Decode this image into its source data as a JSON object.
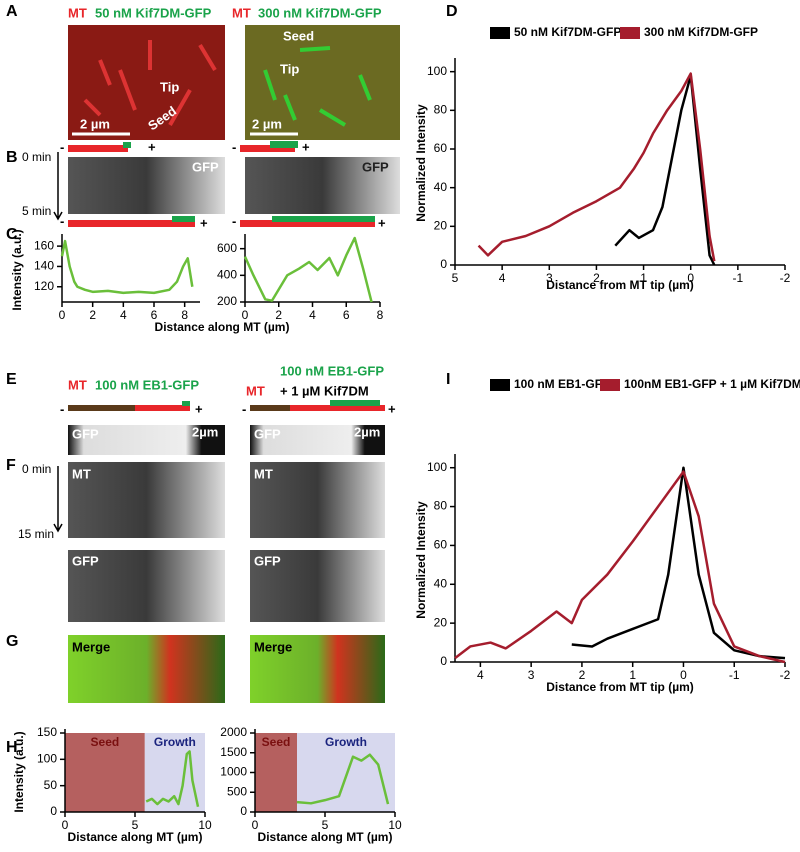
{
  "panels": {
    "letters": [
      "A",
      "B",
      "C",
      "D",
      "E",
      "F",
      "G",
      "H",
      "I"
    ],
    "a": {
      "left_mt": "MT",
      "left_label": "50 nM Kif7DM-GFP",
      "right_mt": "MT",
      "right_label": "300 nM Kif7DM-GFP",
      "left_tip": "Tip",
      "left_seed": "Seed",
      "right_tip": "Tip",
      "right_seed": "Seed",
      "left_scale": "2 µm",
      "right_scale": "2 µm"
    },
    "b": {
      "start": "0 min",
      "end": "5 min",
      "gfp": [
        "GFP",
        "GFP"
      ],
      "minus": [
        "-",
        "-",
        "-",
        "-"
      ],
      "plus": [
        "+",
        "+",
        "+",
        "+"
      ]
    },
    "e": {
      "left_mt": "MT",
      "left_label": "100 nM EB1-GFP",
      "right_mt": "MT",
      "right_label_1": "100 nM EB1-GFP",
      "right_label_2": "+ 1 µM Kif7DM",
      "minus": [
        "-",
        "-"
      ],
      "plus": [
        "+",
        "+"
      ]
    },
    "f": {
      "gfp_strip": [
        "GFP",
        "GFP"
      ],
      "scale": [
        "2µm",
        "2µm"
      ],
      "start": "0 min",
      "end": "15 min",
      "mt": [
        "MT",
        "MT"
      ],
      "gfp": [
        "GFP",
        "GFP"
      ]
    },
    "g": {
      "merge": [
        "Merge",
        "Merge"
      ]
    }
  },
  "chart_data": [
    {
      "type": "line",
      "ylabel": "Intensity (a.u.)",
      "xlabel": "Distance along MT (µm)",
      "xlim": [
        0,
        9
      ],
      "xticks": [
        0,
        2,
        4,
        6,
        8
      ],
      "ylim": [
        105,
        168
      ],
      "yticks": [
        120,
        140,
        160
      ],
      "series": [
        {
          "color": "#6abf3a",
          "x": [
            0,
            0.2,
            0.5,
            0.8,
            1,
            1.5,
            2,
            3,
            4,
            5,
            6,
            7,
            7.5,
            7.9,
            8.2,
            8.5
          ],
          "values": [
            150,
            165,
            140,
            125,
            120,
            117,
            115,
            116,
            114,
            115,
            114,
            117,
            125,
            140,
            148,
            120
          ]
        }
      ]
    },
    {
      "type": "line",
      "xlim": [
        0,
        8
      ],
      "xticks": [
        0,
        2,
        4,
        6,
        8
      ],
      "ylim": [
        200,
        680
      ],
      "yticks": [
        200,
        400,
        600
      ],
      "series": [
        {
          "color": "#6abf3a",
          "x": [
            0,
            0.5,
            1.2,
            1.6,
            2.5,
            3.2,
            3.8,
            4.3,
            5,
            5.5,
            6,
            6.5,
            7,
            7.5
          ],
          "values": [
            540,
            400,
            220,
            210,
            400,
            450,
            500,
            440,
            530,
            400,
            550,
            680,
            450,
            200
          ]
        }
      ]
    },
    {
      "type": "line",
      "ylabel": "Normalized Intensity",
      "xlabel": "Distance from MT tip (µm)",
      "xlim": [
        5,
        -2
      ],
      "xticks": [
        5,
        4,
        3,
        2,
        1,
        0,
        -1,
        -2
      ],
      "ylim": [
        0,
        105
      ],
      "yticks": [
        0,
        20,
        40,
        60,
        80,
        100
      ],
      "legend": "top",
      "series": [
        {
          "name": "50 nM Kif7DM-GFP",
          "color": "#000000",
          "x": [
            1.6,
            1.3,
            1.1,
            0.8,
            0.6,
            0.4,
            0.2,
            0,
            -0.2,
            -0.4,
            -0.5
          ],
          "values": [
            10,
            18,
            14,
            18,
            30,
            55,
            80,
            98,
            50,
            5,
            0
          ]
        },
        {
          "name": "300 nM Kif7DM-GFP",
          "color": "#a51d2d",
          "x": [
            4.5,
            4.3,
            4,
            3.5,
            3,
            2.5,
            2,
            1.5,
            1.2,
            1,
            0.8,
            0.5,
            0.2,
            0,
            -0.2,
            -0.4,
            -0.5
          ],
          "values": [
            10,
            5,
            12,
            15,
            20,
            27,
            33,
            40,
            50,
            58,
            68,
            80,
            90,
            99,
            60,
            15,
            2
          ]
        }
      ]
    },
    {
      "type": "line",
      "ylabel": "Intensity (a.u.)",
      "xlabel": "Distance along MT (µm)",
      "xlim": [
        0,
        10
      ],
      "xticks": [
        0,
        5,
        10
      ],
      "ylim": [
        0,
        150
      ],
      "yticks": [
        0,
        50,
        100,
        150
      ],
      "regions": [
        {
          "label": "Seed",
          "from": 0,
          "to": 5.7,
          "color": "#b5605f"
        },
        {
          "label": "Growth",
          "from": 5.7,
          "to": 10,
          "color": "#d7d8ee"
        }
      ],
      "series": [
        {
          "color": "#6abf3a",
          "x": [
            5.8,
            6.2,
            6.6,
            7,
            7.4,
            7.8,
            8.1,
            8.4,
            8.7,
            8.9,
            9.1,
            9.5
          ],
          "values": [
            20,
            25,
            15,
            25,
            20,
            30,
            15,
            50,
            110,
            115,
            60,
            10
          ]
        }
      ]
    },
    {
      "type": "line",
      "xlabel": "Distance along MT (µm)",
      "xlim": [
        0,
        10
      ],
      "xticks": [
        0,
        5,
        10
      ],
      "ylim": [
        0,
        2000
      ],
      "yticks": [
        0,
        500,
        1000,
        1500,
        2000
      ],
      "regions": [
        {
          "label": "Seed",
          "from": 0,
          "to": 3,
          "color": "#b5605f"
        },
        {
          "label": "Growth",
          "from": 3,
          "to": 10,
          "color": "#d7d8ee"
        }
      ],
      "series": [
        {
          "color": "#6abf3a",
          "x": [
            3,
            4,
            5,
            6,
            6.5,
            7,
            7.6,
            8.2,
            8.8,
            9.5
          ],
          "values": [
            250,
            220,
            300,
            400,
            900,
            1400,
            1300,
            1450,
            1200,
            200
          ]
        }
      ]
    },
    {
      "type": "line",
      "ylabel": "Normalized Intensity",
      "xlabel": "Distance from MT tip (µm)",
      "xlim": [
        4.5,
        -2
      ],
      "xticks": [
        4,
        3,
        2,
        1,
        0,
        -1,
        -2
      ],
      "ylim": [
        0,
        105
      ],
      "yticks": [
        0,
        20,
        40,
        60,
        80,
        100
      ],
      "legend": "top",
      "series": [
        {
          "name": "100 nM EB1-GFP",
          "color": "#000000",
          "x": [
            2.2,
            1.8,
            1.5,
            1,
            0.5,
            0.3,
            0,
            -0.3,
            -0.6,
            -1,
            -1.5,
            -2
          ],
          "values": [
            9,
            8,
            12,
            17,
            22,
            45,
            100,
            45,
            15,
            6,
            3,
            2
          ]
        },
        {
          "name": "100nM EB1-GFP + 1 µM Kif7DM",
          "color": "#a51d2d",
          "x": [
            4.5,
            4.2,
            3.8,
            3.5,
            3,
            2.5,
            2.2,
            2,
            1.5,
            1,
            0.5,
            0,
            -0.3,
            -0.6,
            -1,
            -1.5,
            -2
          ],
          "values": [
            2,
            8,
            10,
            7,
            16,
            26,
            20,
            32,
            45,
            62,
            80,
            98,
            75,
            30,
            8,
            3,
            0
          ]
        }
      ]
    }
  ]
}
